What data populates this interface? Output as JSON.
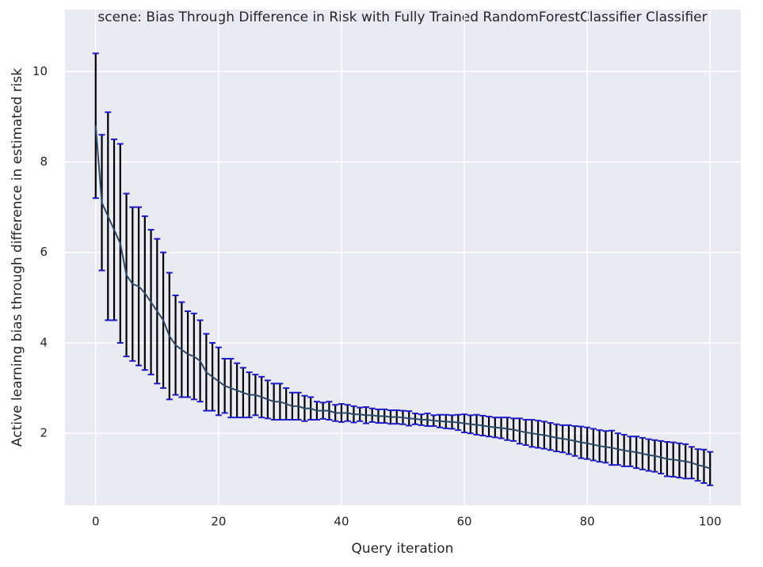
{
  "chart_data": {
    "type": "errorbar",
    "title": "scene: Bias Through Difference in Risk with Fully Trained RandomForestClassifier Classifier",
    "x_label": "Query iteration",
    "y_label": "Active learning bias through difference in estimated risk",
    "x": [
      0,
      1,
      2,
      3,
      4,
      5,
      6,
      7,
      8,
      9,
      10,
      11,
      12,
      13,
      14,
      15,
      16,
      17,
      18,
      19,
      20,
      21,
      22,
      23,
      24,
      25,
      26,
      27,
      28,
      29,
      30,
      31,
      32,
      33,
      34,
      35,
      36,
      37,
      38,
      39,
      40,
      41,
      42,
      43,
      44,
      45,
      46,
      47,
      48,
      49,
      50,
      51,
      52,
      53,
      54,
      55,
      56,
      57,
      58,
      59,
      60,
      61,
      62,
      63,
      64,
      65,
      66,
      67,
      68,
      69,
      70,
      71,
      72,
      73,
      74,
      75,
      76,
      77,
      78,
      79,
      80,
      81,
      82,
      83,
      84,
      85,
      86,
      87,
      88,
      89,
      90,
      91,
      92,
      93,
      94,
      95,
      96,
      97,
      98,
      99,
      100
    ],
    "values": [
      8.8,
      7.1,
      6.8,
      6.5,
      6.2,
      5.5,
      5.3,
      5.25,
      5.1,
      4.9,
      4.7,
      4.5,
      4.15,
      3.95,
      3.85,
      3.75,
      3.7,
      3.6,
      3.35,
      3.25,
      3.15,
      3.05,
      3.0,
      2.95,
      2.9,
      2.85,
      2.85,
      2.8,
      2.75,
      2.7,
      2.7,
      2.65,
      2.6,
      2.6,
      2.55,
      2.55,
      2.5,
      2.5,
      2.5,
      2.45,
      2.45,
      2.45,
      2.42,
      2.42,
      2.4,
      2.4,
      2.38,
      2.38,
      2.36,
      2.36,
      2.35,
      2.33,
      2.32,
      2.3,
      2.3,
      2.28,
      2.27,
      2.26,
      2.25,
      2.24,
      2.22,
      2.2,
      2.19,
      2.17,
      2.15,
      2.13,
      2.12,
      2.1,
      2.08,
      2.05,
      2.02,
      2.0,
      1.98,
      1.96,
      1.93,
      1.9,
      1.88,
      1.86,
      1.83,
      1.8,
      1.78,
      1.75,
      1.72,
      1.7,
      1.68,
      1.65,
      1.62,
      1.6,
      1.58,
      1.55,
      1.52,
      1.5,
      1.47,
      1.43,
      1.42,
      1.4,
      1.38,
      1.35,
      1.3,
      1.27,
      1.22
    ],
    "errors": [
      1.6,
      1.5,
      2.3,
      2.0,
      2.2,
      1.8,
      1.7,
      1.75,
      1.7,
      1.6,
      1.6,
      1.5,
      1.4,
      1.1,
      1.05,
      0.95,
      0.95,
      0.9,
      0.85,
      0.75,
      0.75,
      0.6,
      0.65,
      0.6,
      0.55,
      0.5,
      0.45,
      0.45,
      0.42,
      0.4,
      0.4,
      0.35,
      0.3,
      0.3,
      0.28,
      0.25,
      0.2,
      0.18,
      0.2,
      0.18,
      0.2,
      0.18,
      0.18,
      0.15,
      0.18,
      0.15,
      0.15,
      0.15,
      0.15,
      0.15,
      0.15,
      0.16,
      0.12,
      0.12,
      0.14,
      0.12,
      0.14,
      0.15,
      0.15,
      0.17,
      0.2,
      0.2,
      0.22,
      0.22,
      0.22,
      0.22,
      0.23,
      0.25,
      0.25,
      0.28,
      0.28,
      0.3,
      0.3,
      0.3,
      0.3,
      0.3,
      0.3,
      0.32,
      0.33,
      0.35,
      0.35,
      0.35,
      0.35,
      0.35,
      0.38,
      0.35,
      0.35,
      0.33,
      0.35,
      0.35,
      0.35,
      0.35,
      0.36,
      0.38,
      0.38,
      0.38,
      0.38,
      0.35,
      0.35,
      0.37,
      0.37
    ],
    "color": "#2e4a6b",
    "errorbar_color": "#000000",
    "cap_color": "#1c1cc8",
    "xlim": [
      -5,
      105
    ],
    "ylim": [
      0.41,
      11.37
    ],
    "xticks": [
      0,
      20,
      40,
      60,
      80,
      100
    ],
    "yticks": [
      2,
      4,
      6,
      8,
      10
    ],
    "grid": true
  }
}
